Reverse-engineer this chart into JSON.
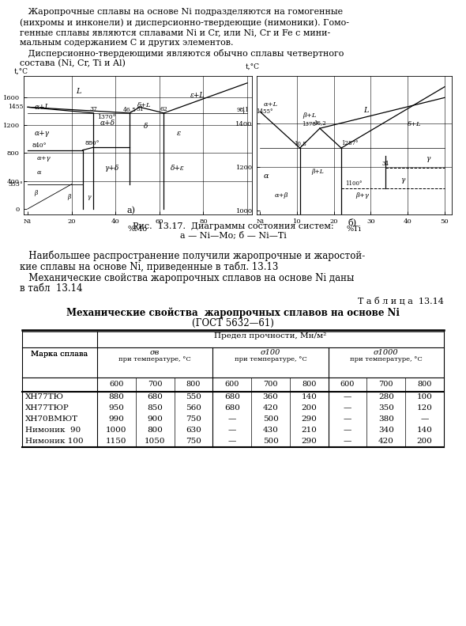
{
  "page_text_1a": "   Жаропрочные сплавы на основе Ni подразделяются на гомогенные",
  "page_text_1b": "(нихромы и инконели) и дисперсионно-твердеющие (нимоники). Гомо-",
  "page_text_1c": "генные сплавы являются сплавами Ni и Cr, или Ni, Cr и Fe с мини-",
  "page_text_1d": "мальным содержанием C и других элементов.",
  "page_text_2a": "   Дисперсионно-твердеющими являются обычно сплавы четвертного",
  "page_text_2b": "состава (Ni, Cr, Ti и Al)",
  "fig_caption_1": "Рис.  13.17.  Диаграммы состояния систем:",
  "fig_caption_2": "а — Ni—Mo; б — Ni—Ti",
  "text_para1a": "   Наибольшее распространение получили жаропрочные и жаростой-",
  "text_para1b": "кие сплавы на основе Ni, приведенные в табл. 13.13",
  "text_para2a": "   Механические свойства жаропрочных сплавов на основе Ni даны",
  "text_para2b": "в табл  13.14",
  "table_label": "Т а б л и ц а  13.14",
  "table_title1": "Механические свойства  жаропрочных сплавов на основе Ni",
  "table_title2": "(ГОСТ 5632—61)",
  "col_header_main": "Предел прочности, Мн/м²",
  "alloys": [
    "ХН77ТЮ",
    "ХН77ТЮР",
    "ХН70ВМЮТ",
    "Нимоник  90",
    "Нимоник 100"
  ],
  "table_data": [
    [
      880,
      680,
      550,
      680,
      360,
      140,
      "—",
      280,
      100
    ],
    [
      950,
      850,
      560,
      680,
      420,
      200,
      "—",
      350,
      120
    ],
    [
      990,
      900,
      750,
      "—",
      500,
      290,
      "—",
      380,
      "—"
    ],
    [
      1000,
      800,
      630,
      "—",
      430,
      210,
      "—",
      340,
      140
    ],
    [
      1150,
      1050,
      750,
      "—",
      500,
      290,
      "—",
      420,
      200
    ]
  ],
  "bg_color": "#ffffff"
}
